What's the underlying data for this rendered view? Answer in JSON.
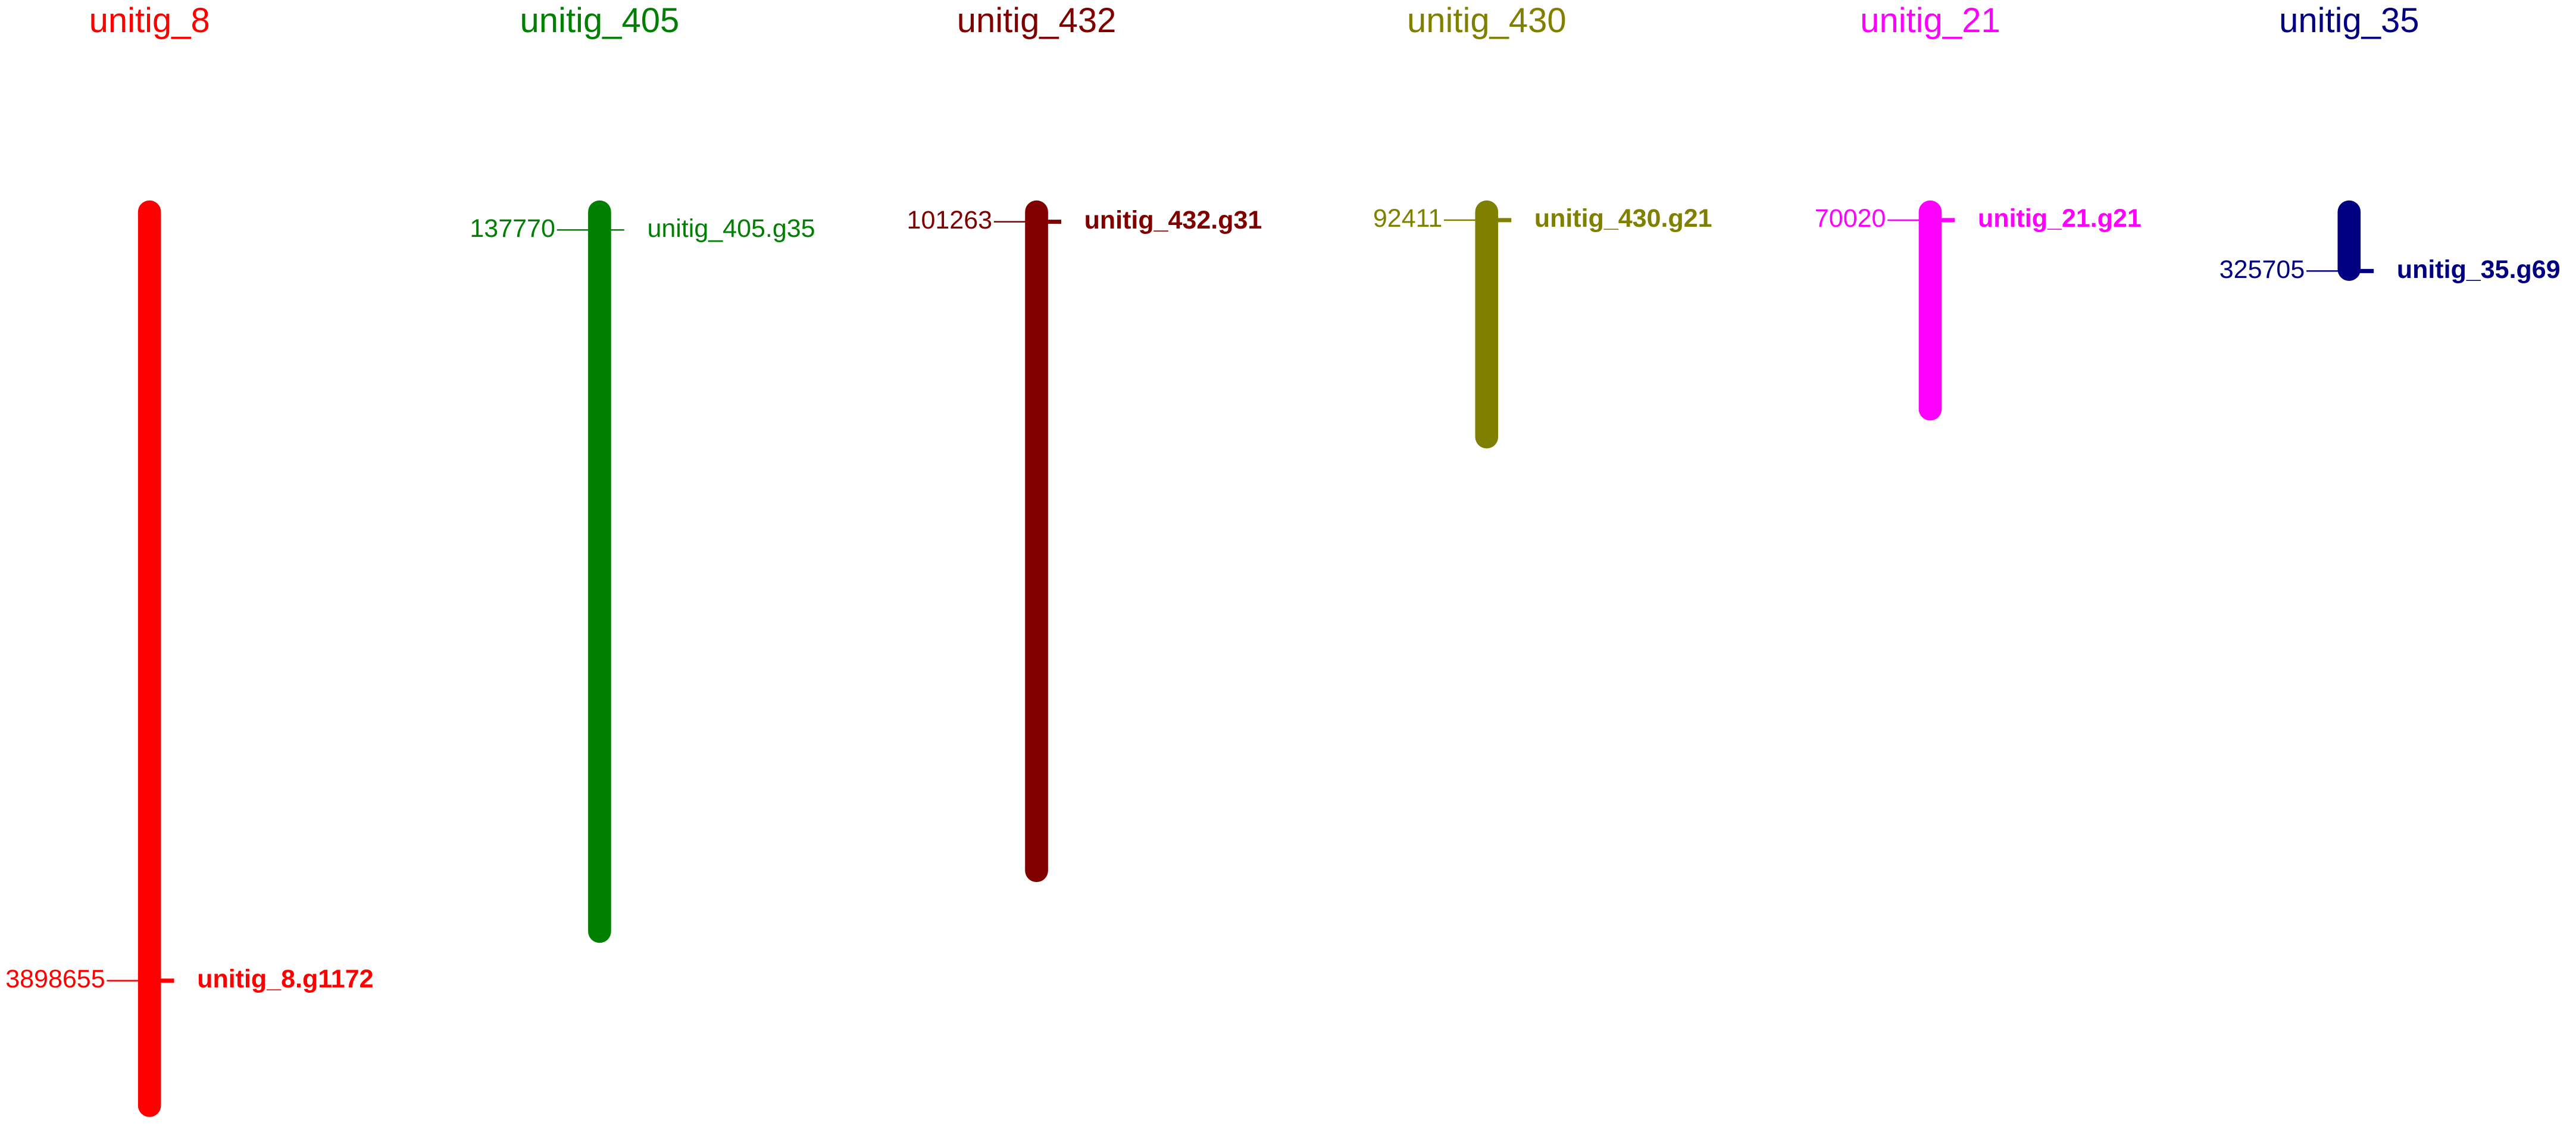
{
  "contigs": [
    {
      "name": "unitig_8",
      "position": "3898655",
      "gene": "unitig_8.g1172"
    },
    {
      "name": "unitig_405",
      "position": "137770",
      "gene": "unitig_405.g35"
    },
    {
      "name": "unitig_432",
      "position": "101263",
      "gene": "unitig_432.g31"
    },
    {
      "name": "unitig_430",
      "position": "92411",
      "gene": "unitig_430.g21"
    },
    {
      "name": "unitig_21",
      "position": "70020",
      "gene": "unitig_21.g21"
    },
    {
      "name": "unitig_35",
      "position": "325705",
      "gene": "unitig_35.g69"
    }
  ]
}
